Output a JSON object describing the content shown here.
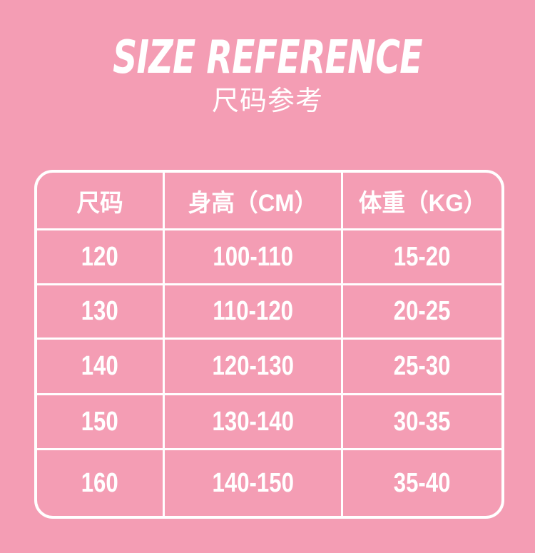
{
  "page": {
    "background_color": "#F49DB4",
    "line_color": "#FFFFFF",
    "text_color": "#FFFFFF"
  },
  "header": {
    "title": "SIZE REFERENCE",
    "subtitle": "尺码参考"
  },
  "chart_data": {
    "type": "table",
    "title": "SIZE REFERENCE",
    "subtitle": "尺码参考",
    "columns": [
      "尺码",
      "身高（CM）",
      "体重（KG）"
    ],
    "rows": [
      [
        "120",
        "100-110",
        "15-20"
      ],
      [
        "130",
        "110-120",
        "20-25"
      ],
      [
        "140",
        "120-130",
        "25-30"
      ],
      [
        "150",
        "130-140",
        "30-35"
      ],
      [
        "160",
        "140-150",
        "35-40"
      ]
    ],
    "layout": "header row on top, white 3px gridlines, rounded outer border, transparent pink cells"
  }
}
